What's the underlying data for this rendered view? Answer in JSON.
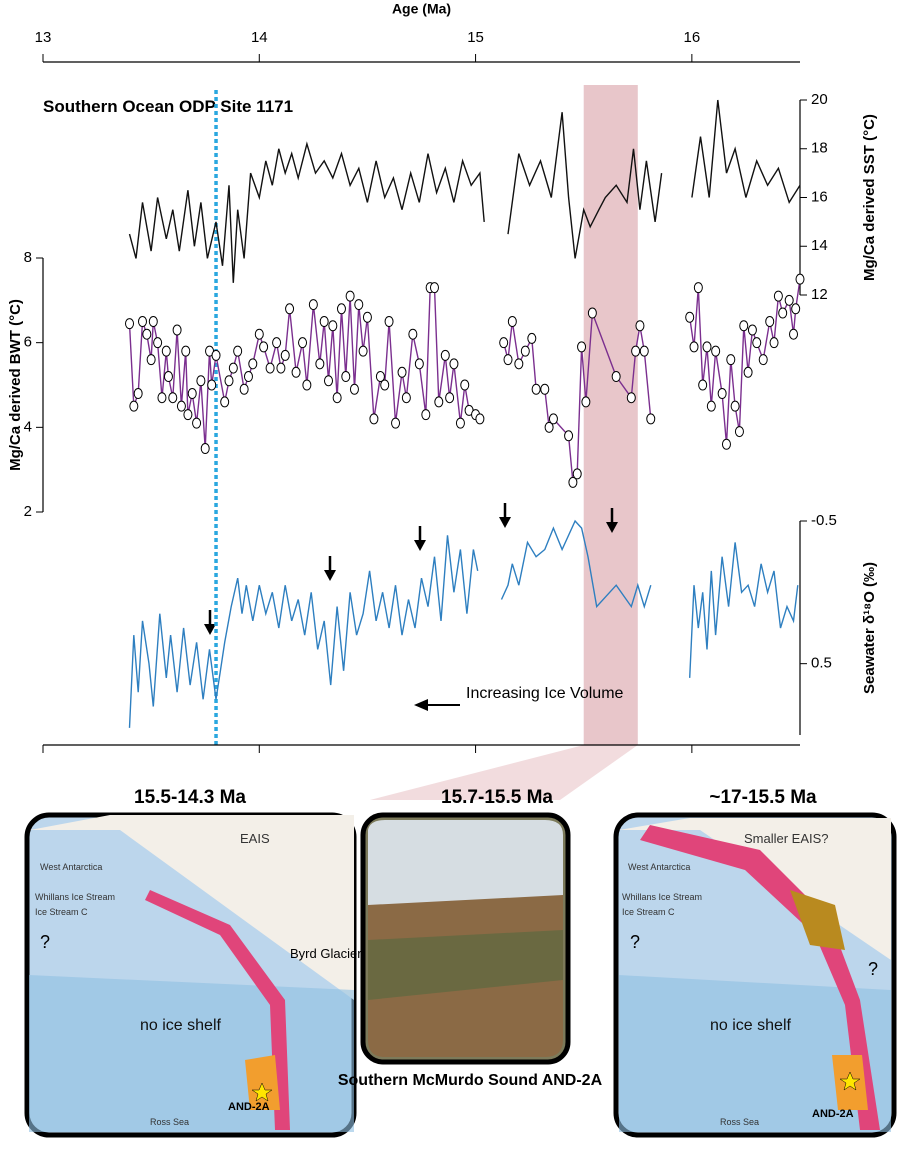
{
  "chart_data": [
    {
      "type": "line",
      "xlabel": "Age (Ma)",
      "xlim": [
        13,
        16.5
      ],
      "xticks": [
        13,
        14,
        15,
        16
      ],
      "ylabel": "Mg/Ca derived SST (°C)",
      "axis_side": "right",
      "ylim": [
        12,
        20
      ],
      "yticks": [
        12,
        14,
        16,
        18,
        20
      ],
      "annotation": "Southern Ocean ODP Site 1171",
      "highlight_x": [
        15.5,
        15.75
      ],
      "reference_x": 13.8,
      "series": [
        {
          "name": "SST",
          "color": "#111111",
          "x": [
            13.4,
            13.43,
            13.46,
            13.5,
            13.53,
            13.57,
            13.6,
            13.63,
            13.67,
            13.7,
            13.73,
            13.76,
            13.8,
            13.83,
            13.86,
            13.88,
            13.9,
            13.93,
            13.96,
            14.0,
            14.03,
            14.06,
            14.09,
            14.12,
            14.15,
            14.18,
            14.22,
            14.26,
            14.3,
            14.34,
            14.38,
            14.42,
            14.46,
            14.5,
            14.54,
            14.58,
            14.62,
            14.66,
            14.7,
            14.74,
            14.78,
            14.82,
            14.86,
            14.9,
            14.94,
            14.98,
            15.02,
            15.04,
            null,
            15.15,
            15.2,
            15.25,
            15.3,
            15.35,
            15.4,
            15.43,
            15.46,
            15.5,
            15.53,
            15.57,
            15.6,
            15.65,
            15.7,
            15.73,
            15.76,
            15.79,
            15.83,
            15.86,
            null,
            16.0,
            16.04,
            16.08,
            16.12,
            16.16,
            16.2,
            16.25,
            16.3,
            16.35,
            16.4,
            16.45,
            16.5
          ],
          "values": [
            14.5,
            13.5,
            15.8,
            13.8,
            16.0,
            14.3,
            15.5,
            13.8,
            16.3,
            14.0,
            15.8,
            13.5,
            15.0,
            13.2,
            16.5,
            12.5,
            15.5,
            13.5,
            17.0,
            16.0,
            17.5,
            16.5,
            18.0,
            17.0,
            17.8,
            16.8,
            18.2,
            17.0,
            17.5,
            16.8,
            17.8,
            16.5,
            17.2,
            15.8,
            17.5,
            16.0,
            16.8,
            15.5,
            17.0,
            15.8,
            17.8,
            16.2,
            17.2,
            15.8,
            17.5,
            16.5,
            17.0,
            15.0,
            null,
            14.5,
            17.8,
            16.5,
            17.5,
            16.0,
            19.5,
            16.0,
            13.5,
            15.5,
            14.8,
            15.5,
            16.0,
            16.5,
            15.8,
            18.0,
            15.5,
            17.5,
            15.0,
            17.0,
            null,
            16.0,
            18.5,
            16.0,
            20.0,
            17.0,
            18.0,
            16.0,
            17.5,
            16.5,
            17.2,
            15.8,
            16.5
          ]
        }
      ]
    },
    {
      "type": "line",
      "xlim": [
        13,
        16.5
      ],
      "ylabel": "Mg/Ca derived BWT (°C)",
      "axis_side": "left",
      "ylim": [
        2,
        8
      ],
      "yticks": [
        2,
        4,
        6,
        8
      ],
      "markers": true,
      "series": [
        {
          "name": "BWT",
          "color": "#7b2f8f",
          "x": [
            13.4,
            13.42,
            13.44,
            13.46,
            13.48,
            13.5,
            13.51,
            13.53,
            13.55,
            13.57,
            13.58,
            13.6,
            13.62,
            13.64,
            13.66,
            13.67,
            13.69,
            13.71,
            13.73,
            13.75,
            13.77,
            13.78,
            13.8,
            13.84,
            13.86,
            13.88,
            13.9,
            13.93,
            13.95,
            13.97,
            14.0,
            14.02,
            14.05,
            14.08,
            14.1,
            14.12,
            14.14,
            14.17,
            14.2,
            14.22,
            14.25,
            14.28,
            14.3,
            14.32,
            14.34,
            14.36,
            14.38,
            14.4,
            14.42,
            14.44,
            14.46,
            14.48,
            14.5,
            14.53,
            14.56,
            14.58,
            14.6,
            14.63,
            14.66,
            14.68,
            14.71,
            14.74,
            14.77,
            14.79,
            14.81,
            14.83,
            14.86,
            14.88,
            14.9,
            14.93,
            14.95,
            14.97,
            15.0,
            15.02,
            null,
            15.13,
            15.15,
            15.17,
            15.2,
            15.23,
            15.26,
            15.28,
            15.32,
            15.34,
            15.36,
            15.43,
            15.45,
            15.47,
            15.49,
            15.51,
            15.54,
            15.65,
            15.72,
            15.74,
            15.76,
            15.78,
            15.81,
            null,
            15.99,
            16.01,
            16.03,
            16.05,
            16.07,
            16.09,
            16.11,
            16.14,
            16.16,
            16.18,
            16.2,
            16.22,
            16.24,
            16.26,
            16.28,
            16.3,
            16.33,
            16.36,
            16.38,
            16.4,
            16.42,
            16.45,
            16.47,
            16.48,
            16.5
          ],
          "values": [
            6.45,
            4.5,
            4.8,
            6.5,
            6.2,
            5.6,
            6.5,
            6.0,
            4.7,
            5.8,
            5.2,
            4.7,
            6.3,
            4.5,
            5.8,
            4.3,
            4.8,
            4.1,
            5.1,
            3.5,
            5.8,
            5.0,
            5.7,
            4.6,
            5.1,
            5.4,
            5.8,
            4.9,
            5.2,
            5.5,
            6.2,
            5.9,
            5.4,
            6.0,
            5.4,
            5.7,
            6.8,
            5.3,
            6.0,
            5.0,
            6.9,
            5.5,
            6.5,
            5.1,
            6.4,
            4.7,
            6.8,
            5.2,
            7.1,
            4.9,
            6.9,
            5.8,
            6.6,
            4.2,
            5.2,
            5.0,
            6.5,
            4.1,
            5.3,
            4.7,
            6.2,
            5.5,
            4.3,
            7.3,
            7.3,
            4.6,
            5.7,
            4.7,
            5.5,
            4.1,
            5.0,
            4.4,
            4.3,
            4.2,
            null,
            6.0,
            5.6,
            6.5,
            5.5,
            5.8,
            6.1,
            4.9,
            4.9,
            4.0,
            4.2,
            3.8,
            2.7,
            2.9,
            5.9,
            4.6,
            6.7,
            5.2,
            4.7,
            5.8,
            6.4,
            5.8,
            4.2,
            null,
            6.6,
            5.9,
            7.3,
            5.0,
            5.9,
            4.5,
            5.8,
            4.8,
            3.6,
            5.6,
            4.5,
            3.9,
            6.4,
            5.3,
            6.3,
            6.0,
            5.6,
            6.5,
            6.0,
            7.1,
            6.7,
            7.0,
            6.2,
            6.8,
            7.5
          ]
        }
      ]
    },
    {
      "type": "line",
      "xlim": [
        13,
        16.5
      ],
      "ylabel": "Seawater δ¹⁸O (‰)",
      "axis_side": "right",
      "ylim": [
        1.0,
        -0.5
      ],
      "yticks": [
        -0.5,
        0.5
      ],
      "annotation": "Increasing Ice Volume",
      "series": [
        {
          "name": "Seawater d18O",
          "color": "#2e7fc0",
          "x": [
            13.4,
            13.42,
            13.44,
            13.46,
            13.49,
            13.51,
            13.54,
            13.57,
            13.59,
            13.62,
            13.65,
            13.68,
            13.71,
            13.74,
            13.77,
            13.8,
            13.82,
            13.84,
            13.87,
            13.9,
            13.92,
            13.94,
            13.97,
            14.0,
            14.03,
            14.06,
            14.09,
            14.12,
            14.15,
            14.18,
            14.21,
            14.24,
            14.27,
            14.3,
            14.33,
            14.36,
            14.39,
            14.42,
            14.45,
            14.48,
            14.51,
            14.54,
            14.57,
            14.6,
            14.63,
            14.66,
            14.69,
            14.72,
            14.75,
            14.78,
            14.81,
            14.84,
            14.87,
            14.9,
            14.93,
            14.96,
            14.99,
            15.01,
            null,
            15.12,
            15.15,
            15.17,
            15.2,
            15.24,
            15.28,
            15.32,
            15.36,
            15.4,
            15.46,
            15.49,
            15.52,
            15.56,
            15.65,
            15.72,
            15.75,
            15.78,
            15.81,
            null,
            15.99,
            16.01,
            16.03,
            16.05,
            16.07,
            16.09,
            16.11,
            16.14,
            16.17,
            16.2,
            16.23,
            16.26,
            16.29,
            16.32,
            16.35,
            16.38,
            16.41,
            16.44,
            16.47,
            16.49
          ],
          "values": [
            0.95,
            0.3,
            0.7,
            0.2,
            0.5,
            0.8,
            0.15,
            0.6,
            0.3,
            0.7,
            0.25,
            0.65,
            0.35,
            0.75,
            0.4,
            0.75,
            0.55,
            0.35,
            0.1,
            -0.1,
            0.15,
            -0.05,
            0.2,
            -0.05,
            0.15,
            0.0,
            0.25,
            -0.05,
            0.2,
            0.05,
            0.3,
            0.0,
            0.4,
            0.2,
            0.65,
            0.1,
            0.55,
            0.0,
            0.3,
            0.15,
            -0.15,
            0.2,
            0.0,
            0.25,
            -0.05,
            0.3,
            0.05,
            0.25,
            -0.1,
            0.1,
            -0.25,
            0.2,
            -0.4,
            0.0,
            -0.3,
            0.15,
            -0.3,
            -0.15,
            null,
            0.05,
            -0.05,
            -0.2,
            -0.05,
            -0.35,
            -0.25,
            -0.3,
            -0.45,
            -0.3,
            -0.5,
            -0.45,
            -0.25,
            0.1,
            -0.05,
            0.1,
            -0.05,
            0.1,
            -0.05,
            null,
            0.6,
            -0.05,
            0.25,
            0.0,
            0.4,
            -0.15,
            0.3,
            -0.25,
            0.1,
            -0.35,
            0.0,
            -0.05,
            0.1,
            -0.2,
            0.0,
            -0.15,
            0.25,
            0.1,
            0.2,
            -0.05
          ]
        }
      ]
    }
  ],
  "panels": [
    {
      "title": "15.5-14.3 Ma",
      "labels": [
        "EAIS",
        "West Antarctica",
        "Whillans Ice Stream",
        "Ice Stream C",
        "?",
        "Byrd Glacier",
        "no ice shelf",
        "AND-2A",
        "Ross Sea"
      ]
    },
    {
      "title": "15.7-15.5 Ma",
      "caption": "Southern McMurdo Sound AND-2A"
    },
    {
      "title": "~17-15.5 Ma",
      "labels": [
        "Smaller EAIS?",
        "West Antarctica",
        "Whillans Ice Stream",
        "Ice Stream C",
        "?",
        "?",
        "no ice shelf",
        "AND-2A",
        "Ross Sea"
      ]
    }
  ]
}
